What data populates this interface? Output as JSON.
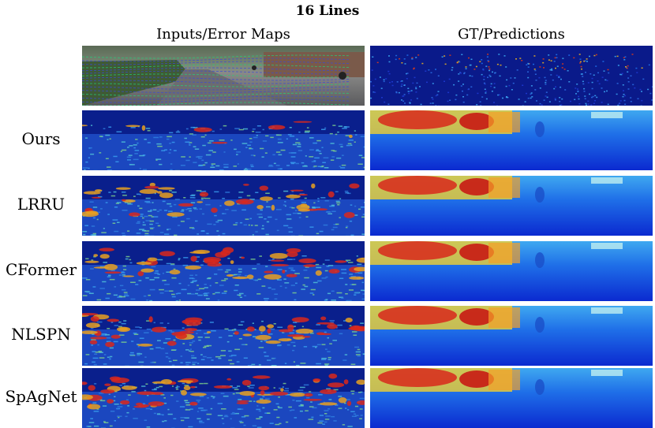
{
  "figure": {
    "title": "16 Lines",
    "columns": [
      "Inputs/Error Maps",
      "GT/Predictions"
    ],
    "rows": [
      {
        "label": ""
      },
      {
        "label": "Ours"
      },
      {
        "label": "LRRU"
      },
      {
        "label": "CFormer"
      },
      {
        "label": "NLSPN"
      },
      {
        "label": "SpAgNet"
      }
    ]
  }
}
